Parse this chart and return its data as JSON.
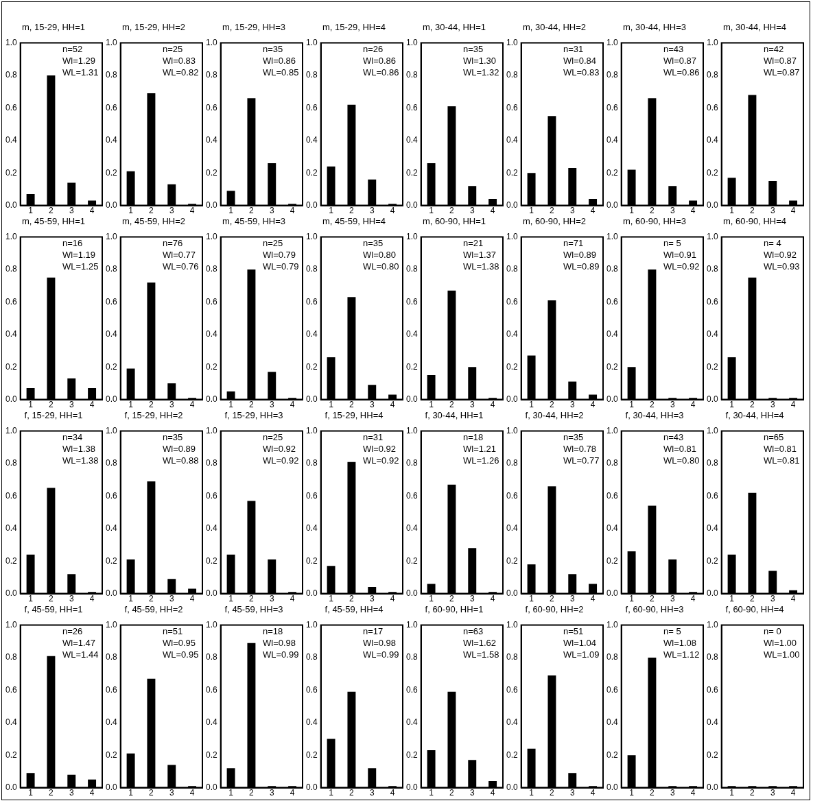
{
  "chart_data": [
    {
      "type": "bar",
      "title": "m, 15-29, HH=1",
      "categories": [
        "1",
        "2",
        "3",
        "4"
      ],
      "values": [
        0.07,
        0.8,
        0.14,
        0.03
      ],
      "color": "#000000",
      "ylim": [
        0,
        1
      ],
      "yticks": [
        {
          "value": 0,
          "label": "0.0"
        },
        {
          "value": 0.2,
          "label": "0.2"
        },
        {
          "value": 0.4,
          "label": "0.4"
        },
        {
          "value": 0.6,
          "label": "0.6"
        },
        {
          "value": 0.8,
          "label": "0.8"
        },
        {
          "value": 1,
          "label": "1.0"
        }
      ],
      "annotations": [
        "n=52",
        "Wl=1.29",
        "WL=1.31"
      ]
    },
    {
      "type": "bar",
      "title": "m, 15-29, HH=2",
      "categories": [
        "1",
        "2",
        "3",
        "4"
      ],
      "values": [
        0.21,
        0.69,
        0.13,
        0.01
      ],
      "color": "#000000",
      "ylim": [
        0,
        1
      ],
      "yticks": [
        {
          "value": 0,
          "label": "0.0"
        },
        {
          "value": 0.2,
          "label": "0.2"
        },
        {
          "value": 0.4,
          "label": "0.4"
        },
        {
          "value": 0.6,
          "label": "0.6"
        },
        {
          "value": 0.8,
          "label": "0.8"
        },
        {
          "value": 1,
          "label": "1.0"
        }
      ],
      "annotations": [
        "n=25",
        "Wl=0.83",
        "WL=0.82"
      ]
    },
    {
      "type": "bar",
      "title": "m, 15-29, HH=3",
      "categories": [
        "1",
        "2",
        "3",
        "4"
      ],
      "values": [
        0.09,
        0.66,
        0.26,
        0.01
      ],
      "color": "#000000",
      "ylim": [
        0,
        1
      ],
      "yticks": [
        {
          "value": 0,
          "label": "0.0"
        },
        {
          "value": 0.2,
          "label": "0.2"
        },
        {
          "value": 0.4,
          "label": "0.4"
        },
        {
          "value": 0.6,
          "label": "0.6"
        },
        {
          "value": 0.8,
          "label": "0.8"
        },
        {
          "value": 1,
          "label": "1.0"
        }
      ],
      "annotations": [
        "n=35",
        "Wl=0.86",
        "WL=0.85"
      ]
    },
    {
      "type": "bar",
      "title": "m, 15-29, HH=4",
      "categories": [
        "1",
        "2",
        "3",
        "4"
      ],
      "values": [
        0.24,
        0.62,
        0.16,
        0.01
      ],
      "color": "#000000",
      "ylim": [
        0,
        1
      ],
      "yticks": [
        {
          "value": 0,
          "label": "0.0"
        },
        {
          "value": 0.2,
          "label": "0.2"
        },
        {
          "value": 0.4,
          "label": "0.4"
        },
        {
          "value": 0.6,
          "label": "0.6"
        },
        {
          "value": 0.8,
          "label": "0.8"
        },
        {
          "value": 1,
          "label": "1.0"
        }
      ],
      "annotations": [
        "n=26",
        "Wl=0.86",
        "WL=0.86"
      ]
    },
    {
      "type": "bar",
      "title": "m, 30-44, HH=1",
      "categories": [
        "1",
        "2",
        "3",
        "4"
      ],
      "values": [
        0.26,
        0.61,
        0.12,
        0.04
      ],
      "color": "#000000",
      "ylim": [
        0,
        1
      ],
      "yticks": [
        {
          "value": 0,
          "label": "0.0"
        },
        {
          "value": 0.2,
          "label": "0.2"
        },
        {
          "value": 0.4,
          "label": "0.4"
        },
        {
          "value": 0.6,
          "label": "0.6"
        },
        {
          "value": 0.8,
          "label": "0.8"
        },
        {
          "value": 1,
          "label": "1.0"
        }
      ],
      "annotations": [
        "n=35",
        "Wl=1.30",
        "WL=1.32"
      ]
    },
    {
      "type": "bar",
      "title": "m, 30-44, HH=2",
      "categories": [
        "1",
        "2",
        "3",
        "4"
      ],
      "values": [
        0.2,
        0.55,
        0.23,
        0.04
      ],
      "color": "#000000",
      "ylim": [
        0,
        1
      ],
      "yticks": [
        {
          "value": 0,
          "label": "0.0"
        },
        {
          "value": 0.2,
          "label": "0.2"
        },
        {
          "value": 0.4,
          "label": "0.4"
        },
        {
          "value": 0.6,
          "label": "0.6"
        },
        {
          "value": 0.8,
          "label": "0.8"
        },
        {
          "value": 1,
          "label": "1.0"
        }
      ],
      "annotations": [
        "n=31",
        "Wl=0.84",
        "WL=0.83"
      ]
    },
    {
      "type": "bar",
      "title": "m, 30-44, HH=3",
      "categories": [
        "1",
        "2",
        "3",
        "4"
      ],
      "values": [
        0.22,
        0.66,
        0.12,
        0.03
      ],
      "color": "#000000",
      "ylim": [
        0,
        1
      ],
      "yticks": [
        {
          "value": 0,
          "label": "0.0"
        },
        {
          "value": 0.2,
          "label": "0.2"
        },
        {
          "value": 0.4,
          "label": "0.4"
        },
        {
          "value": 0.6,
          "label": "0.6"
        },
        {
          "value": 0.8,
          "label": "0.8"
        },
        {
          "value": 1,
          "label": "1.0"
        }
      ],
      "annotations": [
        "n=43",
        "Wl=0.87",
        "WL=0.86"
      ]
    },
    {
      "type": "bar",
      "title": "m, 30-44, HH=4",
      "categories": [
        "1",
        "2",
        "3",
        "4"
      ],
      "values": [
        0.17,
        0.68,
        0.15,
        0.03
      ],
      "color": "#000000",
      "ylim": [
        0,
        1
      ],
      "yticks": [
        {
          "value": 0,
          "label": "0.0"
        },
        {
          "value": 0.2,
          "label": "0.2"
        },
        {
          "value": 0.4,
          "label": "0.4"
        },
        {
          "value": 0.6,
          "label": "0.6"
        },
        {
          "value": 0.8,
          "label": "0.8"
        },
        {
          "value": 1,
          "label": "1.0"
        }
      ],
      "annotations": [
        "n=42",
        "Wl=0.87",
        "WL=0.87"
      ]
    },
    {
      "type": "bar",
      "title": "m, 45-59, HH=1",
      "categories": [
        "1",
        "2",
        "3",
        "4"
      ],
      "values": [
        0.07,
        0.75,
        0.13,
        0.07
      ],
      "color": "#000000",
      "ylim": [
        0,
        1
      ],
      "yticks": [
        {
          "value": 0,
          "label": "0.0"
        },
        {
          "value": 0.2,
          "label": "0.2"
        },
        {
          "value": 0.4,
          "label": "0.4"
        },
        {
          "value": 0.6,
          "label": "0.6"
        },
        {
          "value": 0.8,
          "label": "0.8"
        },
        {
          "value": 1,
          "label": "1.0"
        }
      ],
      "annotations": [
        "n=16",
        "Wl=1.19",
        "WL=1.25"
      ]
    },
    {
      "type": "bar",
      "title": "m, 45-59, HH=2",
      "categories": [
        "1",
        "2",
        "3",
        "4"
      ],
      "values": [
        0.19,
        0.72,
        0.1,
        0.01
      ],
      "color": "#000000",
      "ylim": [
        0,
        1
      ],
      "yticks": [
        {
          "value": 0,
          "label": "0.0"
        },
        {
          "value": 0.2,
          "label": "0.2"
        },
        {
          "value": 0.4,
          "label": "0.4"
        },
        {
          "value": 0.6,
          "label": "0.6"
        },
        {
          "value": 0.8,
          "label": "0.8"
        },
        {
          "value": 1,
          "label": "1.0"
        }
      ],
      "annotations": [
        "n=76",
        "Wl=0.77",
        "WL=0.76"
      ]
    },
    {
      "type": "bar",
      "title": "m, 45-59, HH=3",
      "categories": [
        "1",
        "2",
        "3",
        "4"
      ],
      "values": [
        0.05,
        0.8,
        0.17,
        0.01
      ],
      "color": "#000000",
      "ylim": [
        0,
        1
      ],
      "yticks": [
        {
          "value": 0,
          "label": "0.0"
        },
        {
          "value": 0.2,
          "label": "0.2"
        },
        {
          "value": 0.4,
          "label": "0.4"
        },
        {
          "value": 0.6,
          "label": "0.6"
        },
        {
          "value": 0.8,
          "label": "0.8"
        },
        {
          "value": 1,
          "label": "1.0"
        }
      ],
      "annotations": [
        "n=25",
        "Wl=0.79",
        "WL=0.79"
      ]
    },
    {
      "type": "bar",
      "title": "m, 45-59, HH=4",
      "categories": [
        "1",
        "2",
        "3",
        "4"
      ],
      "values": [
        0.26,
        0.63,
        0.09,
        0.03
      ],
      "color": "#000000",
      "ylim": [
        0,
        1
      ],
      "yticks": [
        {
          "value": 0,
          "label": "0.0"
        },
        {
          "value": 0.2,
          "label": "0.2"
        },
        {
          "value": 0.4,
          "label": "0.4"
        },
        {
          "value": 0.6,
          "label": "0.6"
        },
        {
          "value": 0.8,
          "label": "0.8"
        },
        {
          "value": 1,
          "label": "1.0"
        }
      ],
      "annotations": [
        "n=35",
        "Wl=0.80",
        "WL=0.80"
      ]
    },
    {
      "type": "bar",
      "title": "m, 60-90, HH=1",
      "categories": [
        "1",
        "2",
        "3",
        "4"
      ],
      "values": [
        0.15,
        0.67,
        0.2,
        0.01
      ],
      "color": "#000000",
      "ylim": [
        0,
        1
      ],
      "yticks": [
        {
          "value": 0,
          "label": "0.0"
        },
        {
          "value": 0.2,
          "label": "0.2"
        },
        {
          "value": 0.4,
          "label": "0.4"
        },
        {
          "value": 0.6,
          "label": "0.6"
        },
        {
          "value": 0.8,
          "label": "0.8"
        },
        {
          "value": 1,
          "label": "1.0"
        }
      ],
      "annotations": [
        "n=21",
        "Wl=1.37",
        "WL=1.38"
      ]
    },
    {
      "type": "bar",
      "title": "m, 60-90, HH=2",
      "categories": [
        "1",
        "2",
        "3",
        "4"
      ],
      "values": [
        0.27,
        0.61,
        0.11,
        0.03
      ],
      "color": "#000000",
      "ylim": [
        0,
        1
      ],
      "yticks": [
        {
          "value": 0,
          "label": "0.0"
        },
        {
          "value": 0.2,
          "label": "0.2"
        },
        {
          "value": 0.4,
          "label": "0.4"
        },
        {
          "value": 0.6,
          "label": "0.6"
        },
        {
          "value": 0.8,
          "label": "0.8"
        },
        {
          "value": 1,
          "label": "1.0"
        }
      ],
      "annotations": [
        "n=71",
        "Wl=0.89",
        "WL=0.89"
      ]
    },
    {
      "type": "bar",
      "title": "m, 60-90, HH=3",
      "categories": [
        "1",
        "2",
        "3",
        "4"
      ],
      "values": [
        0.2,
        0.8,
        0.01,
        0.01
      ],
      "color": "#000000",
      "ylim": [
        0,
        1
      ],
      "yticks": [
        {
          "value": 0,
          "label": "0.0"
        },
        {
          "value": 0.2,
          "label": "0.2"
        },
        {
          "value": 0.4,
          "label": "0.4"
        },
        {
          "value": 0.6,
          "label": "0.6"
        },
        {
          "value": 0.8,
          "label": "0.8"
        },
        {
          "value": 1,
          "label": "1.0"
        }
      ],
      "annotations": [
        "n= 5",
        "Wl=0.91",
        "WL=0.92"
      ]
    },
    {
      "type": "bar",
      "title": "m, 60-90, HH=4",
      "categories": [
        "1",
        "2",
        "3",
        "4"
      ],
      "values": [
        0.26,
        0.75,
        0.01,
        0.01
      ],
      "color": "#000000",
      "ylim": [
        0,
        1
      ],
      "yticks": [
        {
          "value": 0,
          "label": "0.0"
        },
        {
          "value": 0.2,
          "label": "0.2"
        },
        {
          "value": 0.4,
          "label": "0.4"
        },
        {
          "value": 0.6,
          "label": "0.6"
        },
        {
          "value": 0.8,
          "label": "0.8"
        },
        {
          "value": 1,
          "label": "1.0"
        }
      ],
      "annotations": [
        "n= 4",
        "Wl=0.92",
        "WL=0.93"
      ]
    },
    {
      "type": "bar",
      "title": "f, 15-29, HH=1",
      "categories": [
        "1",
        "2",
        "3",
        "4"
      ],
      "values": [
        0.24,
        0.65,
        0.12,
        0.01
      ],
      "color": "#000000",
      "ylim": [
        0,
        1
      ],
      "yticks": [
        {
          "value": 0,
          "label": "0.0"
        },
        {
          "value": 0.2,
          "label": "0.2"
        },
        {
          "value": 0.4,
          "label": "0.4"
        },
        {
          "value": 0.6,
          "label": "0.6"
        },
        {
          "value": 0.8,
          "label": "0.8"
        },
        {
          "value": 1,
          "label": "1.0"
        }
      ],
      "annotations": [
        "n=34",
        "Wl=1.38",
        "WL=1.38"
      ]
    },
    {
      "type": "bar",
      "title": "f, 15-29, HH=2",
      "categories": [
        "1",
        "2",
        "3",
        "4"
      ],
      "values": [
        0.21,
        0.69,
        0.09,
        0.03
      ],
      "color": "#000000",
      "ylim": [
        0,
        1
      ],
      "yticks": [
        {
          "value": 0,
          "label": "0.0"
        },
        {
          "value": 0.2,
          "label": "0.2"
        },
        {
          "value": 0.4,
          "label": "0.4"
        },
        {
          "value": 0.6,
          "label": "0.6"
        },
        {
          "value": 0.8,
          "label": "0.8"
        },
        {
          "value": 1,
          "label": "1.0"
        }
      ],
      "annotations": [
        "n=35",
        "Wl=0.89",
        "WL=0.88"
      ]
    },
    {
      "type": "bar",
      "title": "f, 15-29, HH=3",
      "categories": [
        "1",
        "2",
        "3",
        "4"
      ],
      "values": [
        0.24,
        0.57,
        0.21,
        0.01
      ],
      "color": "#000000",
      "ylim": [
        0,
        1
      ],
      "yticks": [
        {
          "value": 0,
          "label": "0.0"
        },
        {
          "value": 0.2,
          "label": "0.2"
        },
        {
          "value": 0.4,
          "label": "0.4"
        },
        {
          "value": 0.6,
          "label": "0.6"
        },
        {
          "value": 0.8,
          "label": "0.8"
        },
        {
          "value": 1,
          "label": "1.0"
        }
      ],
      "annotations": [
        "n=25",
        "Wl=0.92",
        "WL=0.92"
      ]
    },
    {
      "type": "bar",
      "title": "f, 15-29, HH=4",
      "categories": [
        "1",
        "2",
        "3",
        "4"
      ],
      "values": [
        0.17,
        0.81,
        0.04,
        0.01
      ],
      "color": "#000000",
      "ylim": [
        0,
        1
      ],
      "yticks": [
        {
          "value": 0,
          "label": "0.0"
        },
        {
          "value": 0.2,
          "label": "0.2"
        },
        {
          "value": 0.4,
          "label": "0.4"
        },
        {
          "value": 0.6,
          "label": "0.6"
        },
        {
          "value": 0.8,
          "label": "0.8"
        },
        {
          "value": 1,
          "label": "1.0"
        }
      ],
      "annotations": [
        "n=31",
        "Wl=0.92",
        "WL=0.92"
      ]
    },
    {
      "type": "bar",
      "title": "f, 30-44, HH=1",
      "categories": [
        "1",
        "2",
        "3",
        "4"
      ],
      "values": [
        0.06,
        0.67,
        0.28,
        0.01
      ],
      "color": "#000000",
      "ylim": [
        0,
        1
      ],
      "yticks": [
        {
          "value": 0,
          "label": "0.0"
        },
        {
          "value": 0.2,
          "label": "0.2"
        },
        {
          "value": 0.4,
          "label": "0.4"
        },
        {
          "value": 0.6,
          "label": "0.6"
        },
        {
          "value": 0.8,
          "label": "0.8"
        },
        {
          "value": 1,
          "label": "1.0"
        }
      ],
      "annotations": [
        "n=18",
        "Wl=1.21",
        "WL=1.26"
      ]
    },
    {
      "type": "bar",
      "title": "f, 30-44, HH=2",
      "categories": [
        "1",
        "2",
        "3",
        "4"
      ],
      "values": [
        0.18,
        0.66,
        0.12,
        0.06
      ],
      "color": "#000000",
      "ylim": [
        0,
        1
      ],
      "yticks": [
        {
          "value": 0,
          "label": "0.0"
        },
        {
          "value": 0.2,
          "label": "0.2"
        },
        {
          "value": 0.4,
          "label": "0.4"
        },
        {
          "value": 0.6,
          "label": "0.6"
        },
        {
          "value": 0.8,
          "label": "0.8"
        },
        {
          "value": 1,
          "label": "1.0"
        }
      ],
      "annotations": [
        "n=35",
        "Wl=0.78",
        "WL=0.77"
      ]
    },
    {
      "type": "bar",
      "title": "f, 30-44, HH=3",
      "categories": [
        "1",
        "2",
        "3",
        "4"
      ],
      "values": [
        0.26,
        0.54,
        0.21,
        0.01
      ],
      "color": "#000000",
      "ylim": [
        0,
        1
      ],
      "yticks": [
        {
          "value": 0,
          "label": "0.0"
        },
        {
          "value": 0.2,
          "label": "0.2"
        },
        {
          "value": 0.4,
          "label": "0.4"
        },
        {
          "value": 0.6,
          "label": "0.6"
        },
        {
          "value": 0.8,
          "label": "0.8"
        },
        {
          "value": 1,
          "label": "1.0"
        }
      ],
      "annotations": [
        "n=43",
        "Wl=0.81",
        "WL=0.80"
      ]
    },
    {
      "type": "bar",
      "title": "f, 30-44, HH=4",
      "categories": [
        "1",
        "2",
        "3",
        "4"
      ],
      "values": [
        0.24,
        0.62,
        0.14,
        0.02
      ],
      "color": "#000000",
      "ylim": [
        0,
        1
      ],
      "yticks": [
        {
          "value": 0,
          "label": "0.0"
        },
        {
          "value": 0.2,
          "label": "0.2"
        },
        {
          "value": 0.4,
          "label": "0.4"
        },
        {
          "value": 0.6,
          "label": "0.6"
        },
        {
          "value": 0.8,
          "label": "0.8"
        },
        {
          "value": 1,
          "label": "1.0"
        }
      ],
      "annotations": [
        "n=65",
        "Wl=0.81",
        "WL=0.81"
      ]
    },
    {
      "type": "bar",
      "title": "f, 45-59, HH=1",
      "categories": [
        "1",
        "2",
        "3",
        "4"
      ],
      "values": [
        0.09,
        0.81,
        0.08,
        0.05
      ],
      "color": "#000000",
      "ylim": [
        0,
        1
      ],
      "yticks": [
        {
          "value": 0,
          "label": "0.0"
        },
        {
          "value": 0.2,
          "label": "0.2"
        },
        {
          "value": 0.4,
          "label": "0.4"
        },
        {
          "value": 0.6,
          "label": "0.6"
        },
        {
          "value": 0.8,
          "label": "0.8"
        },
        {
          "value": 1,
          "label": "1.0"
        }
      ],
      "annotations": [
        "n=26",
        "Wl=1.47",
        "WL=1.44"
      ]
    },
    {
      "type": "bar",
      "title": "f, 45-59, HH=2",
      "categories": [
        "1",
        "2",
        "3",
        "4"
      ],
      "values": [
        0.21,
        0.67,
        0.14,
        0.01
      ],
      "color": "#000000",
      "ylim": [
        0,
        1
      ],
      "yticks": [
        {
          "value": 0,
          "label": "0.0"
        },
        {
          "value": 0.2,
          "label": "0.2"
        },
        {
          "value": 0.4,
          "label": "0.4"
        },
        {
          "value": 0.6,
          "label": "0.6"
        },
        {
          "value": 0.8,
          "label": "0.8"
        },
        {
          "value": 1,
          "label": "1.0"
        }
      ],
      "annotations": [
        "n=51",
        "Wl=0.95",
        "WL=0.95"
      ]
    },
    {
      "type": "bar",
      "title": "f, 45-59, HH=3",
      "categories": [
        "1",
        "2",
        "3",
        "4"
      ],
      "values": [
        0.12,
        0.89,
        0.01,
        0.01
      ],
      "color": "#000000",
      "ylim": [
        0,
        1
      ],
      "yticks": [
        {
          "value": 0,
          "label": "0.0"
        },
        {
          "value": 0.2,
          "label": "0.2"
        },
        {
          "value": 0.4,
          "label": "0.4"
        },
        {
          "value": 0.6,
          "label": "0.6"
        },
        {
          "value": 0.8,
          "label": "0.8"
        },
        {
          "value": 1,
          "label": "1.0"
        }
      ],
      "annotations": [
        "n=18",
        "Wl=0.98",
        "WL=0.99"
      ]
    },
    {
      "type": "bar",
      "title": "f, 45-59, HH=4",
      "categories": [
        "1",
        "2",
        "3",
        "4"
      ],
      "values": [
        0.3,
        0.59,
        0.12,
        0.01
      ],
      "color": "#000000",
      "ylim": [
        0,
        1
      ],
      "yticks": [
        {
          "value": 0,
          "label": "0.0"
        },
        {
          "value": 0.2,
          "label": "0.2"
        },
        {
          "value": 0.4,
          "label": "0.4"
        },
        {
          "value": 0.6,
          "label": "0.6"
        },
        {
          "value": 0.8,
          "label": "0.8"
        },
        {
          "value": 1,
          "label": "1.0"
        }
      ],
      "annotations": [
        "n=17",
        "Wl=0.98",
        "WL=0.99"
      ]
    },
    {
      "type": "bar",
      "title": "f, 60-90, HH=1",
      "categories": [
        "1",
        "2",
        "3",
        "4"
      ],
      "values": [
        0.23,
        0.59,
        0.17,
        0.04
      ],
      "color": "#000000",
      "ylim": [
        0,
        1
      ],
      "yticks": [
        {
          "value": 0,
          "label": "0.0"
        },
        {
          "value": 0.2,
          "label": "0.2"
        },
        {
          "value": 0.4,
          "label": "0.4"
        },
        {
          "value": 0.6,
          "label": "0.6"
        },
        {
          "value": 0.8,
          "label": "0.8"
        },
        {
          "value": 1,
          "label": "1.0"
        }
      ],
      "annotations": [
        "n=63",
        "Wl=1.62",
        "WL=1.58"
      ]
    },
    {
      "type": "bar",
      "title": "f, 60-90, HH=2",
      "categories": [
        "1",
        "2",
        "3",
        "4"
      ],
      "values": [
        0.24,
        0.69,
        0.09,
        0.01
      ],
      "color": "#000000",
      "ylim": [
        0,
        1
      ],
      "yticks": [
        {
          "value": 0,
          "label": "0.0"
        },
        {
          "value": 0.2,
          "label": "0.2"
        },
        {
          "value": 0.4,
          "label": "0.4"
        },
        {
          "value": 0.6,
          "label": "0.6"
        },
        {
          "value": 0.8,
          "label": "0.8"
        },
        {
          "value": 1,
          "label": "1.0"
        }
      ],
      "annotations": [
        "n=51",
        "Wl=1.04",
        "WL=1.09"
      ]
    },
    {
      "type": "bar",
      "title": "f, 60-90, HH=3",
      "categories": [
        "1",
        "2",
        "3",
        "4"
      ],
      "values": [
        0.2,
        0.8,
        0.01,
        0.01
      ],
      "color": "#000000",
      "ylim": [
        0,
        1
      ],
      "yticks": [
        {
          "value": 0,
          "label": "0.0"
        },
        {
          "value": 0.2,
          "label": "0.2"
        },
        {
          "value": 0.4,
          "label": "0.4"
        },
        {
          "value": 0.6,
          "label": "0.6"
        },
        {
          "value": 0.8,
          "label": "0.8"
        },
        {
          "value": 1,
          "label": "1.0"
        }
      ],
      "annotations": [
        "n= 5",
        "Wl=1.08",
        "WL=1.12"
      ]
    },
    {
      "type": "bar",
      "title": "f, 60-90, HH=4",
      "categories": [
        "1",
        "2",
        "3",
        "4"
      ],
      "values": [
        0.01,
        0.01,
        0.01,
        0.01
      ],
      "color": "#000000",
      "ylim": [
        0,
        1
      ],
      "yticks": [
        {
          "value": 0,
          "label": "0.0"
        },
        {
          "value": 0.2,
          "label": "0.2"
        },
        {
          "value": 0.4,
          "label": "0.4"
        },
        {
          "value": 0.6,
          "label": "0.6"
        },
        {
          "value": 0.8,
          "label": "0.8"
        },
        {
          "value": 1,
          "label": "1.0"
        }
      ],
      "annotations": [
        "n= 0",
        "Wl=1.00",
        "WL=1.00"
      ]
    }
  ]
}
